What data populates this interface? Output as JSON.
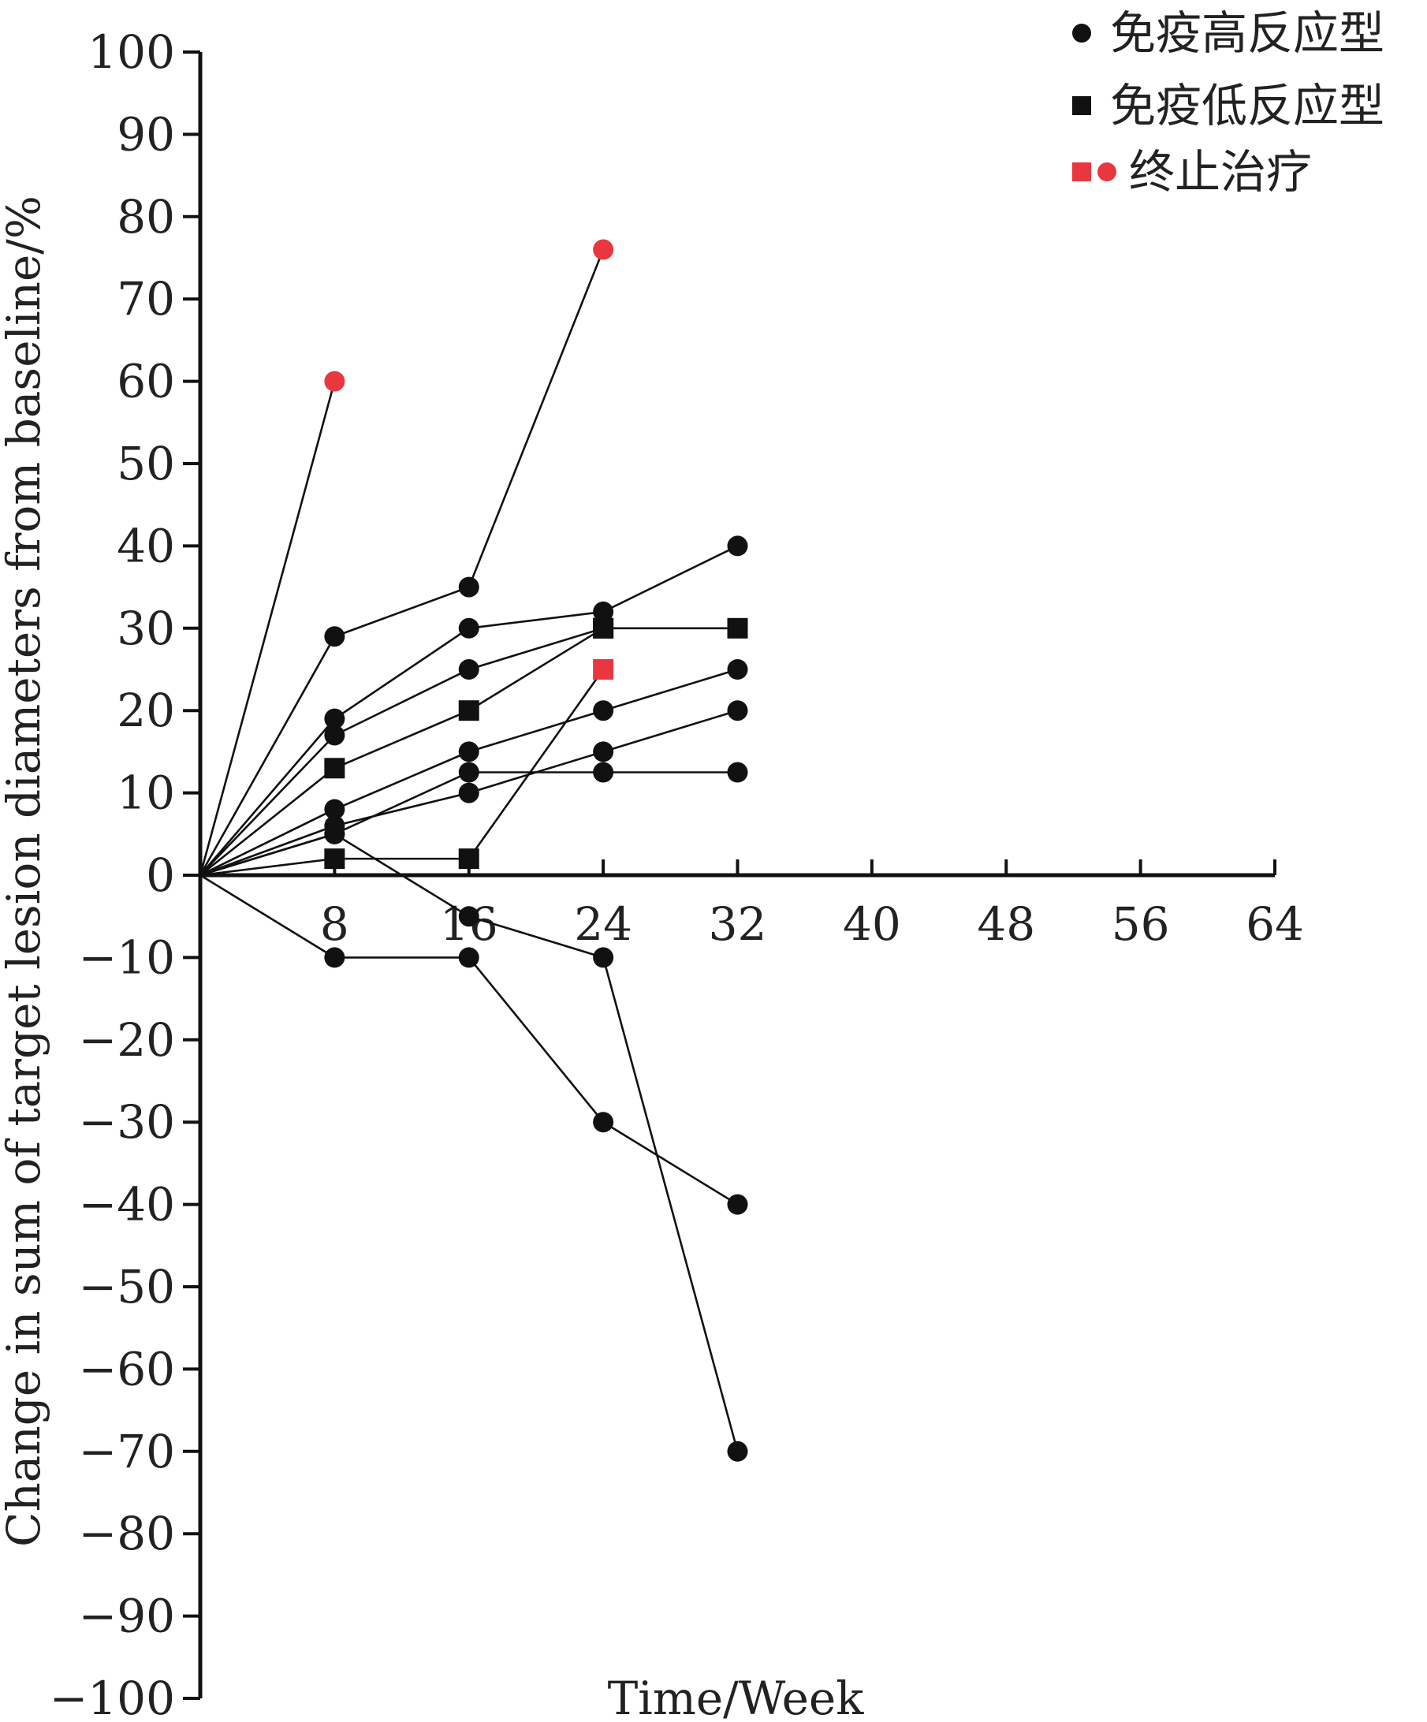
{
  "chart_data": {
    "type": "line",
    "title": "",
    "xlabel": "Time/Week",
    "ylabel": "Change in sum of target lesion diameters from baseline/%",
    "xlim": [
      0,
      64
    ],
    "ylim": [
      -100,
      100
    ],
    "x_ticks": [
      8,
      16,
      24,
      32,
      40,
      48,
      56,
      64
    ],
    "y_ticks": [
      100,
      90,
      80,
      70,
      60,
      50,
      40,
      30,
      20,
      10,
      0,
      -10,
      -20,
      -30,
      -40,
      -50,
      -60,
      -70,
      -80,
      -90,
      -100
    ],
    "grid": false,
    "legend_position": "top-right",
    "legend": [
      {
        "label": "免疫高反应型",
        "markers": [
          "circle"
        ],
        "color": "#111111"
      },
      {
        "label": "免疫低反应型",
        "markers": [
          "square"
        ],
        "color": "#111111"
      },
      {
        "label": "终止治疗",
        "markers": [
          "square",
          "circle"
        ],
        "color": "#e8373f"
      }
    ],
    "colors": {
      "default": "#111111",
      "discontinued": "#e8373f"
    },
    "series": [
      {
        "points": [
          [
            0,
            0
          ],
          [
            8,
            60
          ]
        ],
        "markers": [
          "none",
          "circle"
        ],
        "colors": [
          "",
          "red"
        ]
      },
      {
        "points": [
          [
            0,
            0
          ],
          [
            8,
            29
          ],
          [
            16,
            35
          ],
          [
            24,
            76
          ]
        ],
        "markers": [
          "none",
          "circle",
          "circle",
          "circle"
        ],
        "colors": [
          "",
          "black",
          "black",
          "red"
        ]
      },
      {
        "points": [
          [
            0,
            0
          ],
          [
            8,
            19
          ],
          [
            16,
            30
          ],
          [
            24,
            32
          ],
          [
            32,
            40
          ]
        ],
        "markers": [
          "none",
          "circle",
          "circle",
          "circle",
          "circle"
        ],
        "colors": [
          "",
          "black",
          "black",
          "black",
          "black"
        ]
      },
      {
        "points": [
          [
            0,
            0
          ],
          [
            8,
            17
          ],
          [
            16,
            25
          ],
          [
            24,
            30
          ],
          [
            32,
            30
          ]
        ],
        "markers": [
          "none",
          "circle",
          "circle",
          "square",
          "square"
        ],
        "colors": [
          "",
          "black",
          "black",
          "black",
          "black"
        ]
      },
      {
        "points": [
          [
            0,
            0
          ],
          [
            8,
            13
          ],
          [
            16,
            20
          ],
          [
            24,
            30
          ]
        ],
        "markers": [
          "none",
          "square",
          "square",
          "square"
        ],
        "colors": [
          "",
          "black",
          "black",
          "black"
        ]
      },
      {
        "points": [
          [
            0,
            0
          ],
          [
            8,
            8
          ],
          [
            16,
            15
          ],
          [
            24,
            20
          ],
          [
            32,
            25
          ]
        ],
        "markers": [
          "none",
          "circle",
          "circle",
          "circle",
          "circle"
        ],
        "colors": [
          "",
          "black",
          "black",
          "black",
          "black"
        ]
      },
      {
        "points": [
          [
            0,
            0
          ],
          [
            8,
            6
          ],
          [
            16,
            10
          ],
          [
            24,
            15
          ],
          [
            32,
            20
          ]
        ],
        "markers": [
          "none",
          "circle",
          "circle",
          "circle",
          "circle"
        ],
        "colors": [
          "",
          "black",
          "black",
          "black",
          "black"
        ]
      },
      {
        "points": [
          [
            0,
            0
          ],
          [
            8,
            5
          ],
          [
            16,
            12.5
          ],
          [
            24,
            12.5
          ],
          [
            32,
            12.5
          ]
        ],
        "markers": [
          "none",
          "circle",
          "circle",
          "circle",
          "circle"
        ],
        "colors": [
          "",
          "black",
          "black",
          "black",
          "black"
        ]
      },
      {
        "points": [
          [
            0,
            0
          ],
          [
            8,
            2
          ],
          [
            16,
            2
          ],
          [
            24,
            25
          ]
        ],
        "markers": [
          "none",
          "square",
          "square",
          "square"
        ],
        "colors": [
          "",
          "black",
          "black",
          "red"
        ]
      },
      {
        "points": [
          [
            0,
            0
          ],
          [
            8,
            5
          ],
          [
            16,
            -5
          ],
          [
            24,
            -10
          ],
          [
            32,
            -70
          ]
        ],
        "markers": [
          "none",
          "circle",
          "circle",
          "circle",
          "circle"
        ],
        "colors": [
          "",
          "black",
          "black",
          "black",
          "black"
        ]
      },
      {
        "points": [
          [
            0,
            0
          ],
          [
            8,
            -10
          ],
          [
            16,
            -10
          ],
          [
            24,
            -30
          ],
          [
            32,
            -40
          ]
        ],
        "markers": [
          "none",
          "circle",
          "circle",
          "circle",
          "circle"
        ],
        "colors": [
          "",
          "black",
          "black",
          "black",
          "black"
        ]
      }
    ]
  }
}
